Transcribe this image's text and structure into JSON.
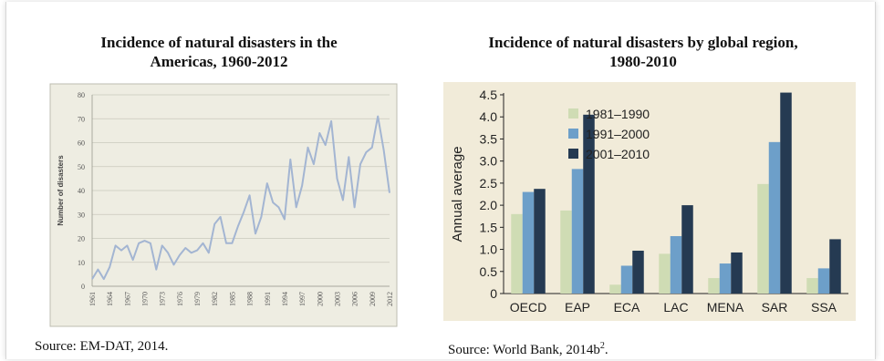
{
  "left_panel": {
    "title_line1": "Incidence of natural disasters in the",
    "title_line2": "Americas, 1960-2012",
    "source": "Source: EM-DAT, 2014."
  },
  "right_panel": {
    "title_line1": "Incidence of natural disasters by global region,",
    "title_line2": "1980-2010",
    "source": "Source: World Bank, 2014b",
    "source_sup": "2",
    "source_end": "."
  },
  "chart_data": [
    {
      "type": "line",
      "title": "Incidence of natural disasters in the Americas, 1960-2012",
      "xlabel": "",
      "ylabel": "Number of disasters",
      "ylim": [
        0,
        80
      ],
      "yticks": [
        0,
        10,
        20,
        30,
        40,
        50,
        60,
        70,
        80
      ],
      "xtick_labels": [
        "1961",
        "1964",
        "1967",
        "1970",
        "1973",
        "1976",
        "1979",
        "1982",
        "1985",
        "1988",
        "1991",
        "1994",
        "1997",
        "2000",
        "2003",
        "2006",
        "2009",
        "2012"
      ],
      "grid": true,
      "background": "#eeede2",
      "line_color": "#a3b5d2",
      "series": [
        {
          "x": [
            1961,
            1962,
            1963,
            1964,
            1965,
            1966,
            1967,
            1968,
            1969,
            1970,
            1971,
            1972,
            1973,
            1974,
            1975,
            1976,
            1977,
            1978,
            1979,
            1980,
            1981,
            1982,
            1983,
            1984,
            1985,
            1986,
            1987,
            1988,
            1989,
            1990,
            1991,
            1992,
            1993,
            1994,
            1995,
            1996,
            1997,
            1998,
            1999,
            2000,
            2001,
            2002,
            2003,
            2004,
            2005,
            2006,
            2007,
            2008,
            2009,
            2010,
            2011,
            2012
          ],
          "values": [
            3,
            7,
            3,
            8,
            17,
            15,
            17,
            11,
            18,
            19,
            18,
            7,
            17,
            14,
            9,
            13,
            16,
            14,
            15,
            18,
            14,
            26,
            29,
            18,
            18,
            25,
            31,
            38,
            22,
            29,
            43,
            35,
            33,
            28,
            53,
            33,
            42,
            58,
            51,
            64,
            59,
            69,
            45,
            36,
            54,
            33,
            51,
            56,
            58,
            71,
            57,
            39
          ]
        }
      ]
    },
    {
      "type": "bar",
      "title": "Incidence of natural disasters by global region, 1980-2010",
      "xlabel": "",
      "ylabel": "Annual average",
      "ylim": [
        0,
        4.5
      ],
      "yticks": [
        0,
        0.5,
        1.0,
        1.5,
        2.0,
        2.5,
        3.0,
        3.5,
        4.0,
        4.5
      ],
      "ytick_labels": [
        "0",
        "0.5",
        "1.0",
        "1.5",
        "2.0",
        "2.5",
        "3.0",
        "3.5",
        "4.0",
        "4.5"
      ],
      "categories": [
        "OECD",
        "EAP",
        "ECA",
        "LAC",
        "MENA",
        "SAR",
        "SSA"
      ],
      "legend_placement": "top-left",
      "background": "#f1ebd9",
      "series": [
        {
          "name": "1981–1990",
          "color": "#cfdcb4",
          "values": [
            1.8,
            1.88,
            0.2,
            0.9,
            0.35,
            2.48,
            0.35
          ]
        },
        {
          "name": "1991–2000",
          "color": "#6d9fc9",
          "values": [
            2.3,
            2.82,
            0.63,
            1.3,
            0.68,
            3.43,
            0.57
          ]
        },
        {
          "name": "2001–2010",
          "color": "#253a52",
          "values": [
            2.37,
            4.05,
            0.97,
            2.0,
            0.93,
            4.55,
            1.23
          ]
        }
      ]
    }
  ]
}
